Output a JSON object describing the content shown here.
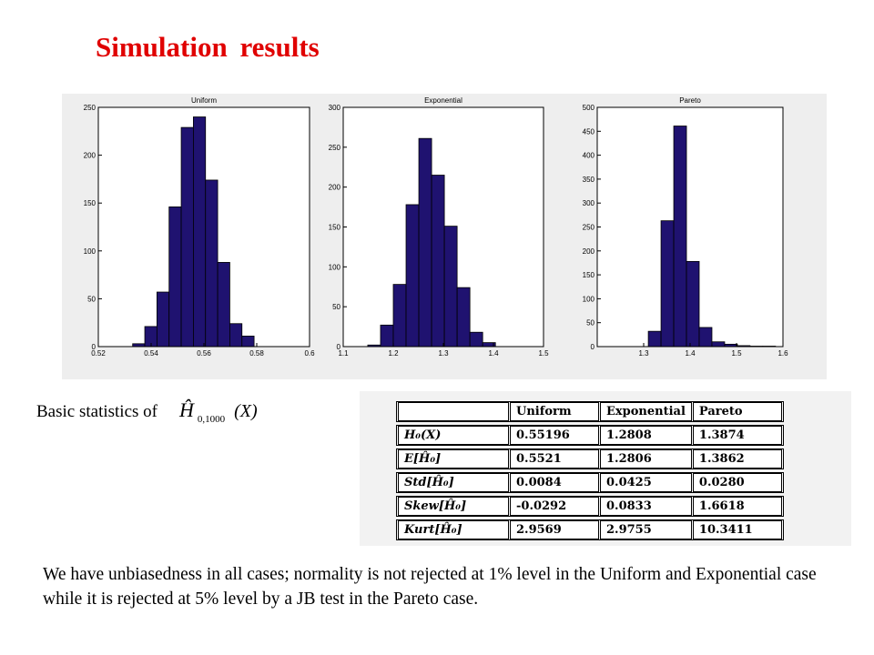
{
  "title": "Simulation results",
  "chart_data": [
    {
      "type": "histogram",
      "title": "Uniform",
      "color": "#1f1270",
      "bins": [
        0.533,
        0.5376,
        0.5422,
        0.5468,
        0.5514,
        0.556,
        0.5606,
        0.5652,
        0.5698,
        0.5744,
        0.579
      ],
      "values": [
        3,
        21,
        57,
        146,
        229,
        240,
        174,
        88,
        24,
        11
      ],
      "xlim": [
        0.52,
        0.6
      ],
      "xticks": [
        0.52,
        0.54,
        0.56,
        0.58,
        0.6
      ],
      "ylim": [
        0,
        250
      ],
      "yticks": [
        0,
        50,
        100,
        150,
        200,
        250
      ]
    },
    {
      "type": "histogram",
      "title": "Exponential",
      "color": "#1f1270",
      "bins": [
        1.149,
        1.1745,
        1.2,
        1.2255,
        1.251,
        1.2765,
        1.302,
        1.3275,
        1.353,
        1.3785,
        1.404
      ],
      "values": [
        2,
        27,
        78,
        178,
        261,
        215,
        151,
        74,
        18,
        5
      ],
      "xlim": [
        1.1,
        1.5
      ],
      "xticks": [
        1.1,
        1.2,
        1.3,
        1.4,
        1.5
      ],
      "ylim": [
        0,
        300
      ],
      "yticks": [
        0,
        50,
        100,
        150,
        200,
        250,
        300
      ]
    },
    {
      "type": "histogram",
      "title": "Pareto",
      "color": "#1f1270",
      "bins": [
        1.31,
        1.3374,
        1.3648,
        1.3922,
        1.4196,
        1.447,
        1.4744,
        1.5018,
        1.5292,
        1.5566,
        1.584
      ],
      "values": [
        32,
        263,
        461,
        178,
        40,
        10,
        5,
        2,
        1,
        1
      ],
      "xlim": [
        1.2,
        1.6
      ],
      "xticks": [
        1.3,
        1.4,
        1.5,
        1.6
      ],
      "ylim": [
        0,
        500
      ],
      "yticks": [
        0,
        50,
        100,
        150,
        200,
        250,
        300,
        350,
        400,
        450,
        500
      ]
    }
  ],
  "stats_label": {
    "text": "Basic statistics of",
    "symbol": "Ĥ",
    "sub": "0,1000",
    "arg": "(X)"
  },
  "table": {
    "header": [
      "Uniform",
      "Exponential",
      "Pareto"
    ],
    "rows": [
      {
        "label": "H₀(X)",
        "values": [
          "0.55196",
          "1.2808",
          "1.3874"
        ]
      },
      {
        "label": "E[Ĥ₀]",
        "values": [
          "0.5521",
          "1.2806",
          "1.3862"
        ]
      },
      {
        "label": "Std[Ĥ₀]",
        "values": [
          "0.0084",
          "0.0425",
          "0.0280"
        ]
      },
      {
        "label": "Skew[Ĥ₀]",
        "values": [
          "-0.0292",
          "0.0833",
          "1.6618"
        ]
      },
      {
        "label": "Kurt[Ĥ₀]",
        "values": [
          "2.9569",
          "2.9755",
          "10.3411"
        ]
      }
    ]
  },
  "paragraph": "We have unbiasedness in all cases; normality is not rejected at 1% level in the Uniform and Exponential case while it is rejected at 5% level by a JB test in the Pareto case."
}
